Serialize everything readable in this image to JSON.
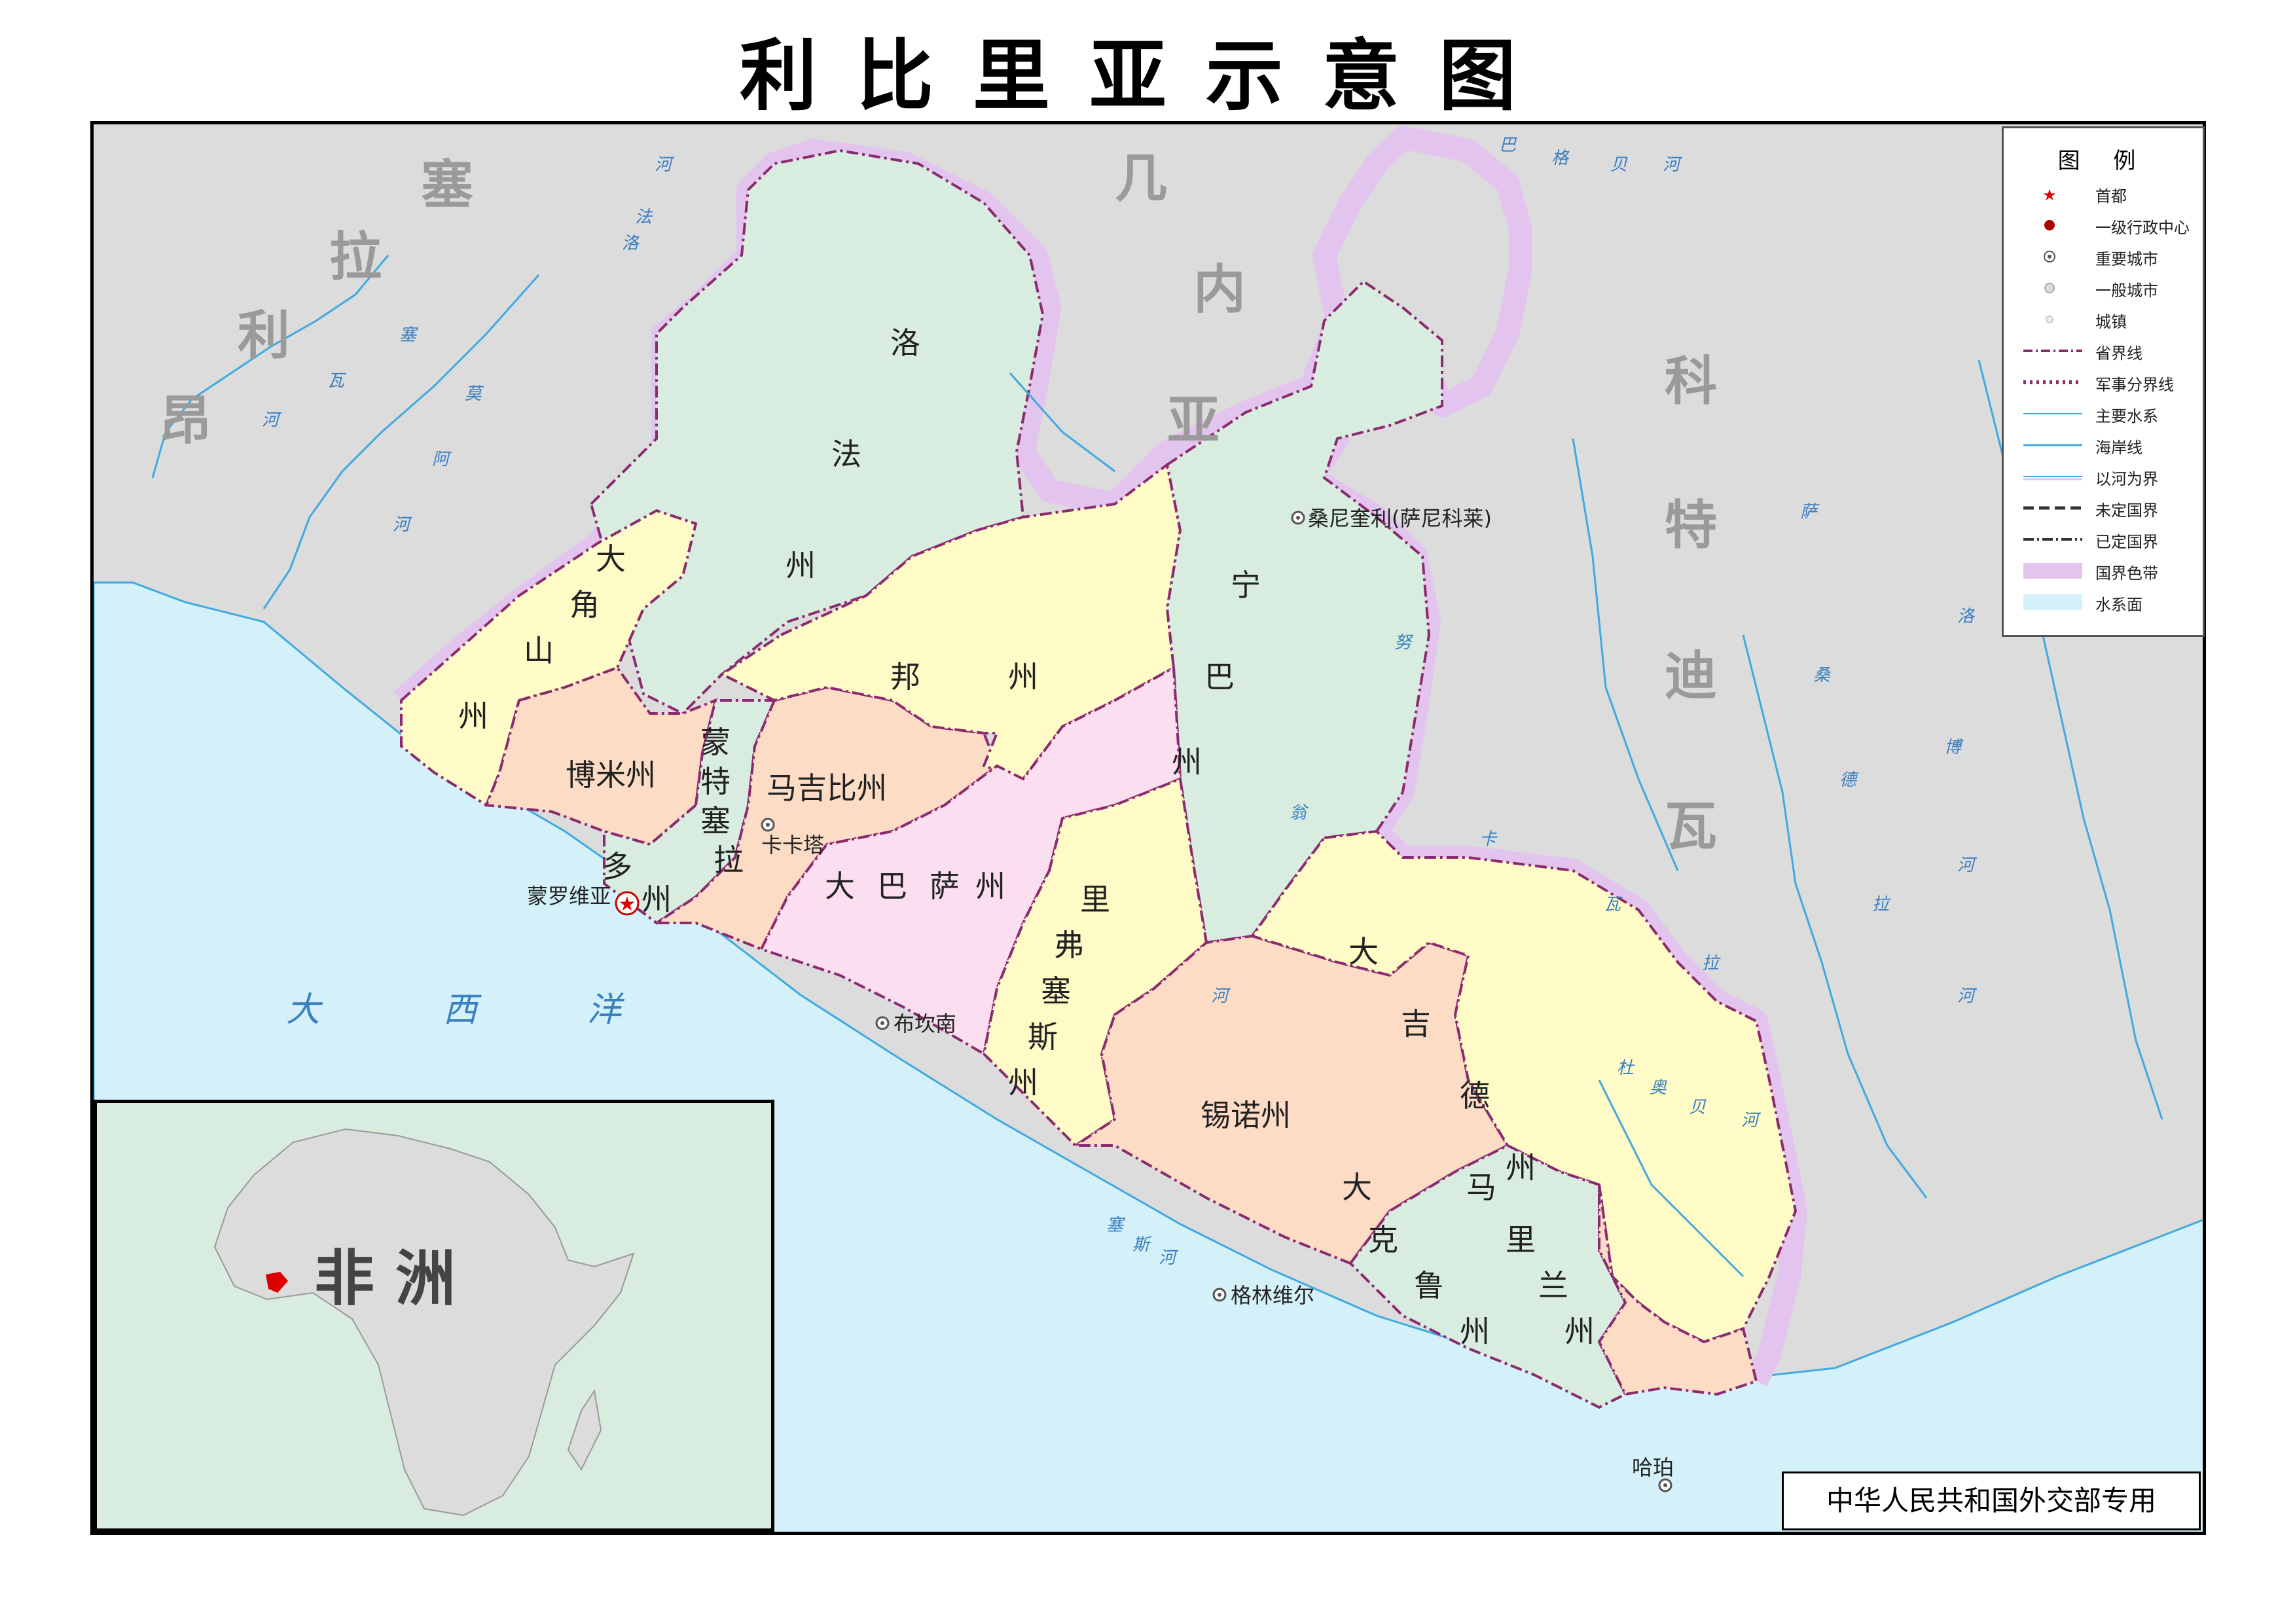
{
  "title": "利比里亚示意图",
  "neighbors": {
    "sierra_leone": [
      "塞",
      "拉",
      "利",
      "昂"
    ],
    "guinea": [
      "几",
      "内",
      "亚"
    ],
    "cote_divoire": [
      "科",
      "特",
      "迪",
      "瓦"
    ]
  },
  "ocean": [
    "大",
    "西",
    "洋"
  ],
  "counties": {
    "lofa": [
      "洛",
      "法",
      "州"
    ],
    "grand_cape_mount": [
      "大",
      "角",
      "山",
      "州"
    ],
    "bomi": "博米州",
    "montserrado": [
      "蒙",
      "特",
      "塞",
      "拉",
      "多",
      "州"
    ],
    "margibi": "马吉比州",
    "bong": [
      "邦",
      "州"
    ],
    "nimba": [
      "宁",
      "巴",
      "州"
    ],
    "grand_bassa": [
      "大",
      "巴",
      "萨",
      "州"
    ],
    "rivercess": [
      "里",
      "弗",
      "塞",
      "斯",
      "州"
    ],
    "sinoe": "锡诺州",
    "grand_gedeh": [
      "大",
      "吉",
      "德",
      "州"
    ],
    "grand_kru": [
      "大",
      "克",
      "鲁",
      "州"
    ],
    "maryland": [
      "马",
      "里",
      "兰",
      "州"
    ]
  },
  "cities": {
    "capital": "蒙罗维亚",
    "kakata": "卡卡塔",
    "buchanan": "布坎南",
    "sanniquellie": "桑尼奎利(萨尼科莱)",
    "greenville": "格林维尔",
    "harper": "哈珀"
  },
  "rivers": {
    "r1": [
      "瓦",
      "河"
    ],
    "r2": [
      "塞",
      "莫",
      "阿",
      "河"
    ],
    "r3": [
      "洛",
      "法",
      "河"
    ],
    "r4": [
      "巴",
      "格",
      "贝",
      "河"
    ],
    "r5": [
      "努",
      "翁",
      "河"
    ],
    "r6": [
      "卡",
      "瓦",
      "拉",
      "河"
    ],
    "r7": [
      "杜",
      "奥",
      "贝",
      "河"
    ],
    "r8": [
      "萨",
      "桑",
      "德",
      "拉"
    ],
    "r9": [
      "洛",
      "博",
      "河",
      "河"
    ],
    "r10": [
      "塞",
      "斯",
      "河"
    ]
  },
  "legend": {
    "title": "图  例",
    "items": [
      {
        "label": "首都"
      },
      {
        "label": "一级行政中心"
      },
      {
        "label": "重要城市"
      },
      {
        "label": "一般城市"
      },
      {
        "label": "城镇"
      },
      {
        "label": "省界线"
      },
      {
        "label": "军事分界线"
      },
      {
        "label": "主要水系"
      },
      {
        "label": "海岸线"
      },
      {
        "label": "以河为界"
      },
      {
        "label": "未定国界"
      },
      {
        "label": "已定国界"
      },
      {
        "label": "国界色带"
      },
      {
        "label": "水系面"
      }
    ]
  },
  "inset": {
    "label": "非 洲"
  },
  "credit": "中华人民共和国外交部专用",
  "colors": {
    "land": "#dcdcdc",
    "water": "#d4f1f9",
    "green": "#d9ece0",
    "yellow": "#fffbc6",
    "orange": "#fddcc6",
    "pink": "#fbdff0",
    "border_band": "#e2c4ee",
    "province_line": "#8b2a6e",
    "river": "#3fa9e0"
  }
}
